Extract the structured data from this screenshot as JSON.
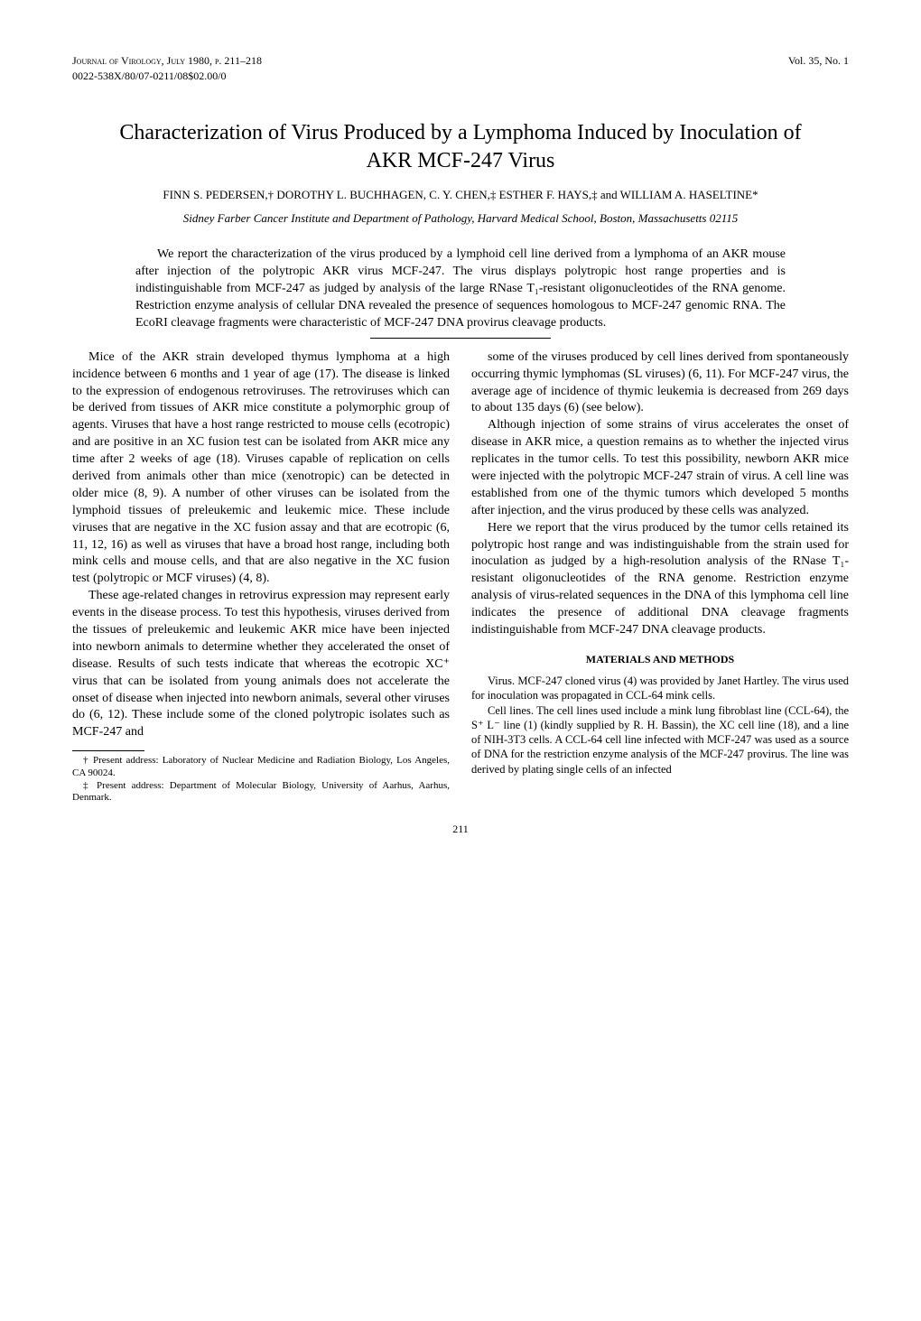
{
  "header": {
    "journal_line": "Journal of Virology, July 1980, p. 211–218",
    "volume": "Vol. 35, No. 1",
    "issn": "0022-538X/80/07-0211/08$02.00/0"
  },
  "title": "Characterization of Virus Produced by a Lymphoma Induced by Inoculation of AKR MCF-247 Virus",
  "authors": "FINN S. PEDERSEN,† DOROTHY L. BUCHHAGEN, C. Y. CHEN,‡ ESTHER F. HAYS,‡ and WILLIAM A. HASELTINE*",
  "affiliation": "Sidney Farber Cancer Institute and Department of Pathology, Harvard Medical School, Boston, Massachusetts 02115",
  "abstract": "We report the characterization of the virus produced by a lymphoid cell line derived from a lymphoma of an AKR mouse after injection of the polytropic AKR virus MCF-247. The virus displays polytropic host range properties and is indistinguishable from MCF-247 as judged by analysis of the large RNase T₁-resistant oligonucleotides of the RNA genome. Restriction enzyme analysis of cellular DNA revealed the presence of sequences homologous to MCF-247 genomic RNA. The EcoRI cleavage fragments were characteristic of MCF-247 DNA provirus cleavage products.",
  "left_column": {
    "p1": "Mice of the AKR strain developed thymus lymphoma at a high incidence between 6 months and 1 year of age (17). The disease is linked to the expression of endogenous retroviruses. The retroviruses which can be derived from tissues of AKR mice constitute a polymorphic group of agents. Viruses that have a host range restricted to mouse cells (ecotropic) and are positive in an XC fusion test can be isolated from AKR mice any time after 2 weeks of age (18). Viruses capable of replication on cells derived from animals other than mice (xenotropic) can be detected in older mice (8, 9). A number of other viruses can be isolated from the lymphoid tissues of preleukemic and leukemic mice. These include viruses that are negative in the XC fusion assay and that are ecotropic (6, 11, 12, 16) as well as viruses that have a broad host range, including both mink cells and mouse cells, and that are also negative in the XC fusion test (polytropic or MCF viruses) (4, 8).",
    "p2": "These age-related changes in retrovirus expression may represent early events in the disease process. To test this hypothesis, viruses derived from the tissues of preleukemic and leukemic AKR mice have been injected into newborn animals to determine whether they accelerated the onset of disease. Results of such tests indicate that whereas the ecotropic XC⁺ virus that can be isolated from young animals does not accelerate the onset of disease when injected into newborn animals, several other viruses do (6, 12). These include some of the cloned polytropic isolates such as MCF-247 and",
    "fn1": "† Present address: Laboratory of Nuclear Medicine and Radiation Biology, Los Angeles, CA 90024.",
    "fn2": "‡ Present address: Department of Molecular Biology, University of Aarhus, Aarhus, Denmark."
  },
  "right_column": {
    "p1": "some of the viruses produced by cell lines derived from spontaneously occurring thymic lymphomas (SL viruses) (6, 11). For MCF-247 virus, the average age of incidence of thymic leukemia is decreased from 269 days to about 135 days (6) (see below).",
    "p2": "Although injection of some strains of virus accelerates the onset of disease in AKR mice, a question remains as to whether the injected virus replicates in the tumor cells. To test this possibility, newborn AKR mice were injected with the polytropic MCF-247 strain of virus. A cell line was established from one of the thymic tumors which developed 5 months after injection, and the virus produced by these cells was analyzed.",
    "p3": "Here we report that the virus produced by the tumor cells retained its polytropic host range and was indistinguishable from the strain used for inoculation as judged by a high-resolution analysis of the RNase T₁-resistant oligonucleotides of the RNA genome. Restriction enzyme analysis of virus-related sequences in the DNA of this lymphoma cell line indicates the presence of additional DNA cleavage fragments indistinguishable from MCF-247 DNA cleavage products.",
    "methods_heading": "MATERIALS AND METHODS",
    "m1": "Virus. MCF-247 cloned virus (4) was provided by Janet Hartley. The virus used for inoculation was propagated in CCL-64 mink cells.",
    "m2": "Cell lines. The cell lines used include a mink lung fibroblast line (CCL-64), the S⁺ L⁻ line (1) (kindly supplied by R. H. Bassin), the XC cell line (18), and a line of NIH-3T3 cells. A CCL-64 cell line infected with MCF-247 was used as a source of DNA for the restriction enzyme analysis of the MCF-247 provirus. The line was derived by plating single cells of an infected"
  },
  "page_number": "211"
}
